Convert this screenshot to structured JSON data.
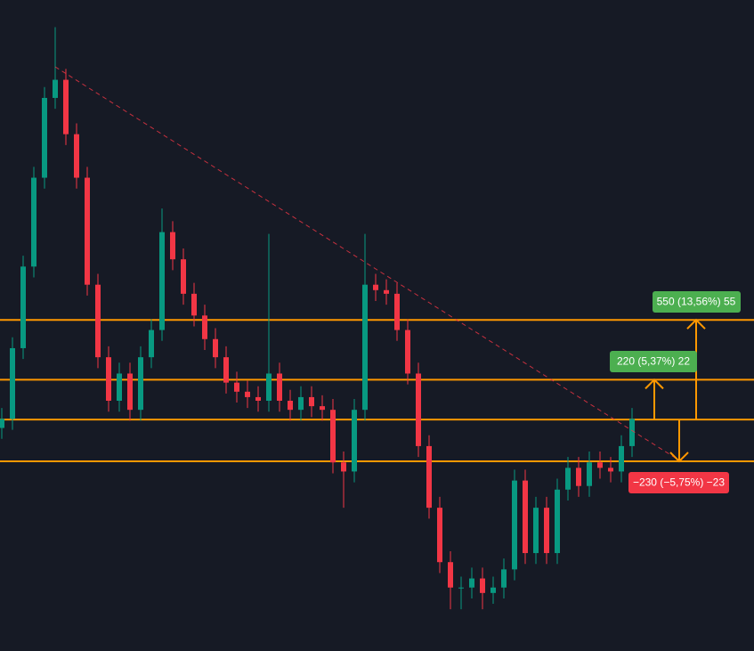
{
  "chart_data": {
    "type": "candlestick",
    "ylim": [
      2780,
      6370
    ],
    "up_color": "#089981",
    "down_color": "#f23645",
    "level_color": "#ff9800",
    "levels": [
      4606,
      4276,
      4056,
      3826
    ],
    "open": [
      4010,
      4060,
      4450,
      4900,
      5390,
      5830,
      5930,
      5630,
      5390,
      4800,
      4400,
      4160,
      4310,
      4110,
      4400,
      4550,
      5090,
      4940,
      4750,
      4630,
      4500,
      4400,
      4260,
      4210,
      4180,
      4160,
      4310,
      4160,
      4110,
      4180,
      4130,
      4110,
      3820,
      3770,
      4110,
      4800,
      4770,
      4750,
      4550,
      4310,
      3910,
      3570,
      3270,
      3130,
      3130,
      3180,
      3100,
      3130,
      3230,
      3720,
      3320,
      3570,
      3320,
      3670,
      3790,
      3690,
      3820,
      3790,
      3770,
      3910
    ],
    "high": [
      4120,
      4510,
      4960,
      5450,
      5890,
      6220,
      5990,
      5690,
      5450,
      4860,
      4460,
      4370,
      4370,
      4460,
      4610,
      5220,
      5150,
      5000,
      4810,
      4690,
      4560,
      4460,
      4320,
      4270,
      4240,
      5080,
      4370,
      4220,
      4240,
      4240,
      4190,
      4170,
      3880,
      4170,
      5080,
      4860,
      4830,
      4810,
      4610,
      4370,
      3970,
      3630,
      3330,
      3190,
      3240,
      3240,
      3190,
      3290,
      3780,
      3780,
      3630,
      3630,
      3730,
      3850,
      3850,
      3880,
      3880,
      3850,
      3970,
      4120
    ],
    "low": [
      3950,
      4000,
      4390,
      4840,
      5330,
      5770,
      5570,
      5330,
      4740,
      4340,
      4100,
      4100,
      4050,
      4050,
      4340,
      4490,
      4880,
      4690,
      4570,
      4440,
      4340,
      4200,
      4150,
      4120,
      4100,
      4100,
      4100,
      4050,
      4050,
      4070,
      4050,
      3760,
      3570,
      3710,
      4050,
      4710,
      4690,
      4490,
      4250,
      3850,
      3510,
      3210,
      3010,
      3010,
      3070,
      3010,
      3040,
      3070,
      3170,
      3260,
      3260,
      3260,
      3260,
      3610,
      3630,
      3630,
      3730,
      3710,
      3710,
      3850
    ],
    "close": [
      4060,
      4450,
      4900,
      5390,
      5830,
      5930,
      5630,
      5390,
      4800,
      4400,
      4160,
      4310,
      4110,
      4400,
      4550,
      5090,
      4940,
      4750,
      4630,
      4500,
      4400,
      4260,
      4210,
      4180,
      4160,
      4310,
      4160,
      4110,
      4180,
      4130,
      4110,
      3820,
      3770,
      4110,
      4800,
      4770,
      4750,
      4550,
      4310,
      3910,
      3570,
      3270,
      3130,
      3130,
      3180,
      3100,
      3130,
      3230,
      3720,
      3320,
      3570,
      3320,
      3670,
      3790,
      3690,
      3820,
      3790,
      3770,
      3910,
      4060
    ],
    "labels": [
      "550 (13,56%) 55",
      "220 (5,37%) 22",
      "−230 (−5,75%) −23"
    ]
  }
}
